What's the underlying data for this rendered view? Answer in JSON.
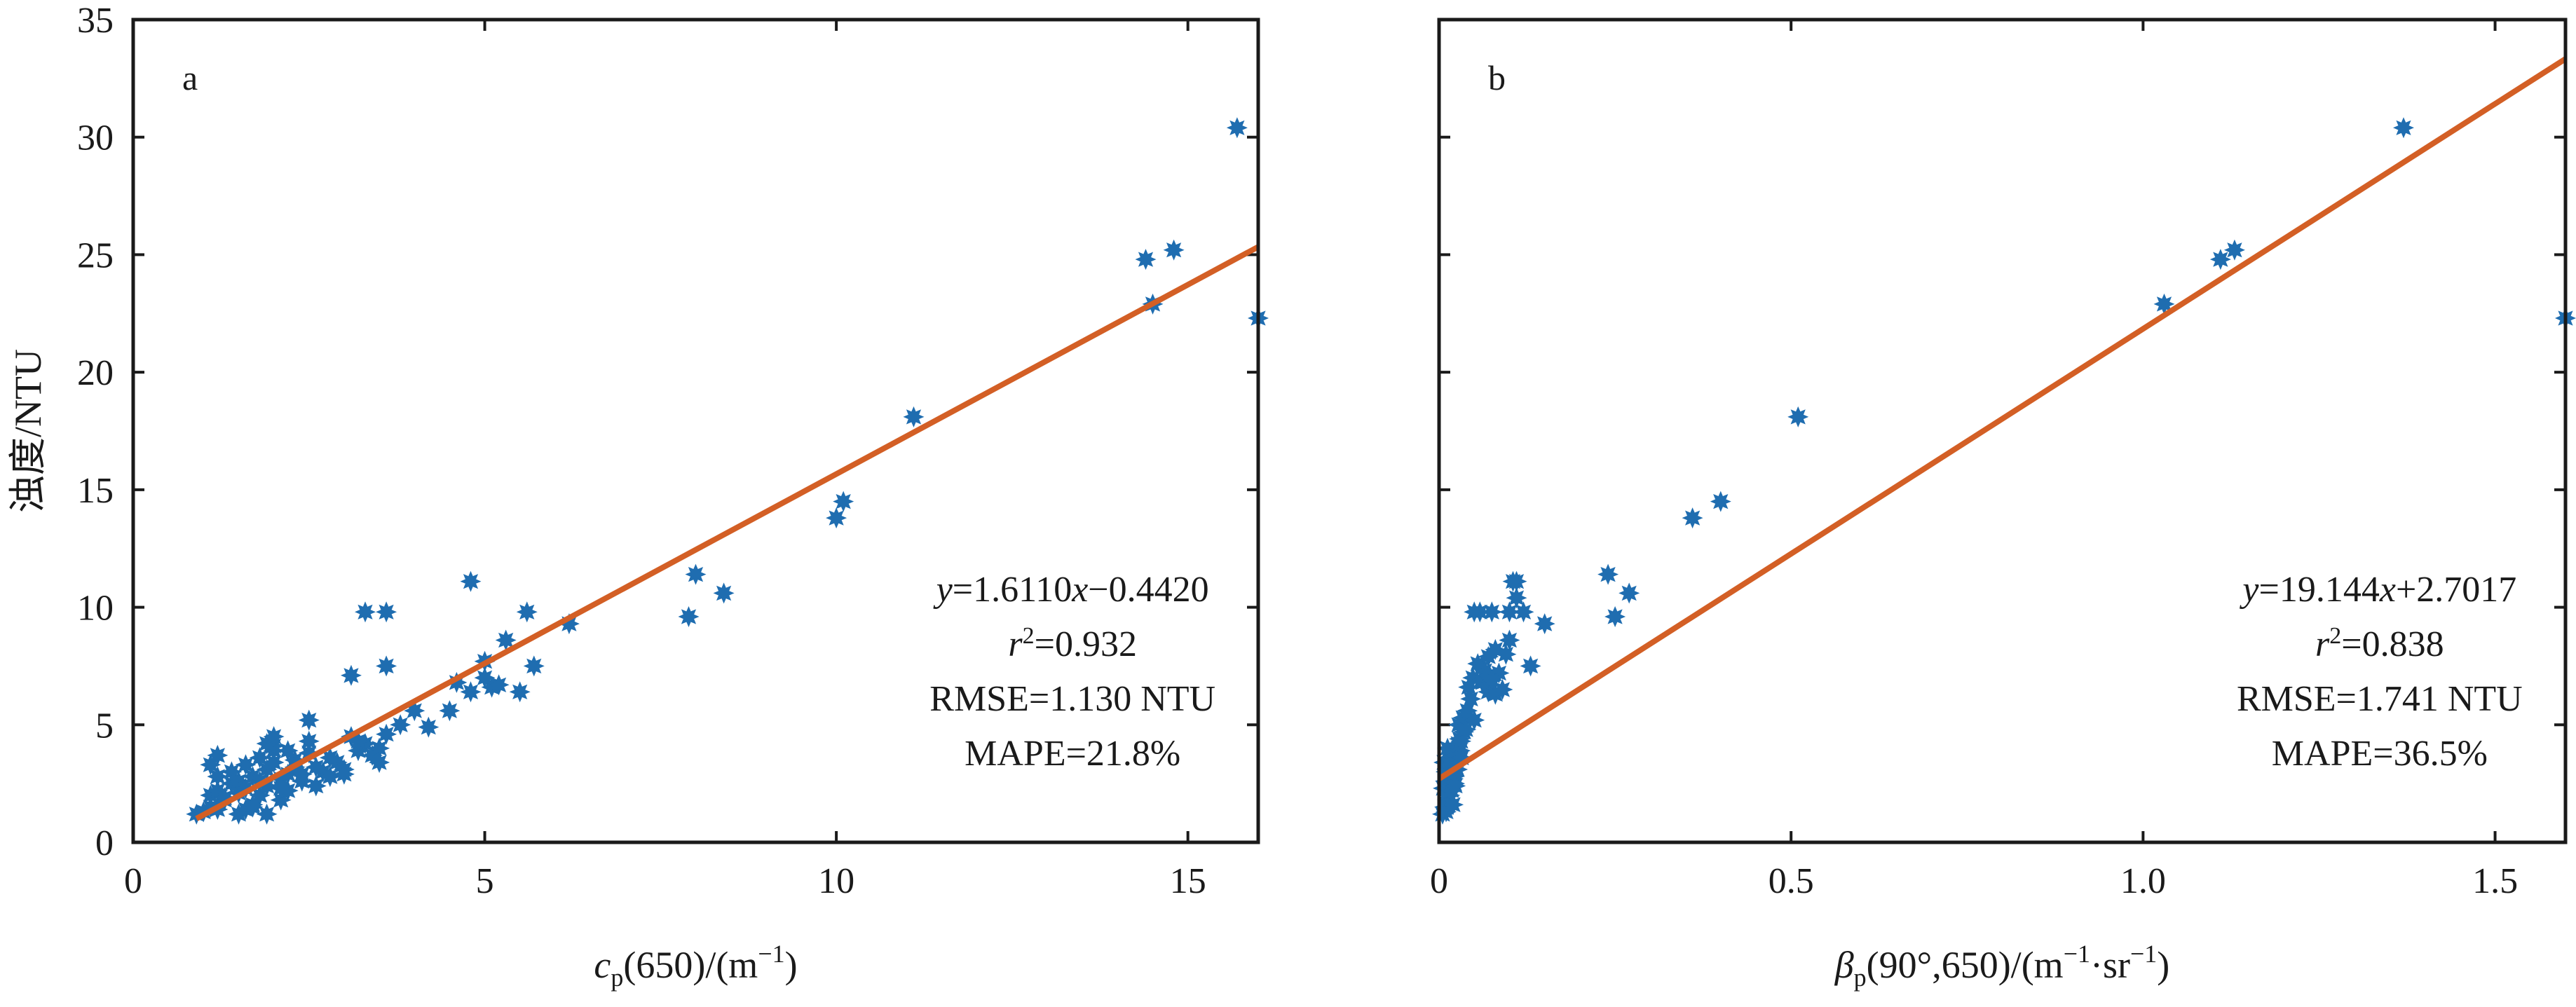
{
  "chart_data": [
    {
      "type": "scatter",
      "panel_label": "a",
      "xlabel": {
        "main": "c",
        "sub": "p",
        "rest": "(650)/(m",
        "sup": "−1",
        "close": ")"
      },
      "ylabel": "浊度/NTU",
      "xlim": [
        0,
        16
      ],
      "ylim": [
        0,
        35
      ],
      "xticks": [
        0,
        5,
        10,
        15
      ],
      "xtick_labels": [
        "0",
        "5",
        "10",
        "15"
      ],
      "yticks": [
        0,
        5,
        10,
        15,
        20,
        25,
        30,
        35
      ],
      "ytick_labels": [
        "0",
        "5",
        "10",
        "15",
        "20",
        "25",
        "30",
        "35"
      ],
      "fit": {
        "slope": 1.611,
        "intercept": -0.442,
        "x_range": [
          0.9,
          16
        ]
      },
      "stats": {
        "equation": {
          "y": "y",
          "eq": "=1.6110",
          "x": "x",
          "rest": "−0.4420"
        },
        "r2": {
          "r": "r",
          "sup": "2",
          "rest": "=0.932"
        },
        "rmse": "RMSE=1.130 NTU",
        "mape": "MAPE=21.8%"
      },
      "series": [
        {
          "x": [
            0.9,
            1.0,
            1.1,
            1.2,
            1.3,
            1.1,
            1.2,
            1.3,
            1.4,
            1.5,
            1.4,
            1.5,
            1.6,
            1.7,
            1.6,
            1.7,
            1.8,
            1.9,
            1.8,
            1.9,
            2.0,
            2.1,
            2.0,
            2.1,
            2.2,
            2.3,
            2.2,
            2.3,
            2.4,
            2.5,
            2.6,
            2.7,
            2.8,
            2.9,
            3.0,
            3.1,
            3.2,
            3.3,
            3.4,
            3.5,
            1.2,
            1.1,
            1.2,
            1.5,
            1.6,
            1.7,
            1.8,
            1.9,
            2.0,
            2.1,
            2.2,
            2.4,
            2.5,
            2.6,
            2.8,
            3.0,
            3.2,
            3.5,
            3.6,
            3.8,
            4.0,
            4.2,
            4.5,
            4.6,
            4.8,
            5.0,
            5.1,
            5.2,
            5.5,
            1.9,
            2.0,
            2.5,
            3.1,
            3.3,
            3.6,
            3.6,
            4.8,
            5.0,
            5.3,
            5.6,
            5.7,
            6.2,
            7.9,
            8.0,
            8.4,
            10.0,
            10.1,
            11.1,
            14.4,
            14.5,
            14.8,
            15.7,
            16.0
          ],
          "y": [
            1.2,
            1.3,
            1.5,
            1.4,
            1.8,
            2.0,
            2.2,
            1.9,
            2.5,
            2.1,
            3.0,
            2.6,
            2.3,
            2.8,
            3.3,
            1.5,
            2.0,
            1.2,
            3.6,
            2.4,
            3.9,
            2.7,
            4.1,
            1.8,
            2.9,
            3.2,
            2.2,
            3.5,
            2.6,
            3.8,
            2.4,
            3.0,
            2.8,
            3.4,
            3.1,
            4.5,
            3.9,
            4.2,
            3.7,
            4.0,
            2.8,
            3.3,
            3.7,
            1.2,
            1.4,
            1.6,
            2.6,
            3.1,
            3.4,
            2.3,
            3.9,
            2.9,
            4.3,
            3.2,
            3.6,
            2.9,
            4.3,
            3.4,
            4.6,
            5.0,
            5.6,
            4.9,
            5.6,
            6.8,
            6.4,
            7.7,
            6.6,
            6.7,
            6.4,
            4.2,
            4.5,
            5.2,
            7.1,
            9.8,
            9.8,
            7.5,
            11.1,
            7.0,
            8.6,
            9.8,
            7.5,
            9.3,
            9.6,
            11.4,
            10.6,
            13.8,
            14.5,
            18.1,
            24.8,
            22.9,
            25.2,
            30.4,
            22.3
          ]
        }
      ]
    },
    {
      "type": "scatter",
      "panel_label": "b",
      "xlabel": {
        "main": "β",
        "sub": "p",
        "rest": "(90°,650)/(m",
        "sup1": "−1",
        "mid": "·sr",
        "sup2": "−1",
        "close": ")"
      },
      "ylabel": "",
      "xlim": [
        0,
        1.6
      ],
      "ylim": [
        0,
        35
      ],
      "xticks": [
        0,
        0.5,
        1.0,
        1.5
      ],
      "xtick_labels": [
        "0",
        "0.5",
        "1.0",
        "1.5"
      ],
      "yticks": [
        0,
        5,
        10,
        15,
        20,
        25,
        30,
        35
      ],
      "fit": {
        "slope": 19.144,
        "intercept": 2.7017,
        "x_range": [
          0,
          1.6
        ]
      },
      "stats": {
        "equation": {
          "y": "y",
          "eq": "=19.144",
          "x": "x",
          "rest": "+2.7017"
        },
        "r2": {
          "r": "r",
          "sup": "2",
          "rest": "=0.838"
        },
        "rmse": "RMSE=1.741 NTU",
        "mape": "MAPE=36.5%"
      },
      "series": [
        {
          "x": [
            0.005,
            0.008,
            0.01,
            0.012,
            0.015,
            0.006,
            0.009,
            0.011,
            0.013,
            0.016,
            0.018,
            0.02,
            0.007,
            0.01,
            0.014,
            0.017,
            0.019,
            0.022,
            0.025,
            0.012,
            0.015,
            0.018,
            0.021,
            0.024,
            0.027,
            0.03,
            0.02,
            0.023,
            0.026,
            0.029,
            0.032,
            0.035,
            0.028,
            0.031,
            0.034,
            0.038,
            0.04,
            0.045,
            0.05,
            0.042,
            0.048,
            0.055,
            0.06,
            0.065,
            0.07,
            0.058,
            0.062,
            0.07,
            0.075,
            0.08,
            0.085,
            0.09,
            0.095,
            0.1,
            0.11,
            0.12,
            0.13,
            0.15,
            0.05,
            0.06,
            0.07,
            0.075,
            0.08,
            0.1,
            0.105,
            0.11,
            0.24,
            0.25,
            0.27,
            0.36,
            0.4,
            0.51,
            1.03,
            1.11,
            1.13,
            1.37,
            1.6
          ],
          "y": [
            1.2,
            1.5,
            1.3,
            1.8,
            2.0,
            2.3,
            2.6,
            2.1,
            2.9,
            2.4,
            3.1,
            2.7,
            3.4,
            3.0,
            3.6,
            3.2,
            3.8,
            2.5,
            3.5,
            4.0,
            3.3,
            2.2,
            2.8,
            3.7,
            4.2,
            3.9,
            1.6,
            2.4,
            3.1,
            4.4,
            3.6,
            4.7,
            5.0,
            4.3,
            5.3,
            4.8,
            5.6,
            6.1,
            5.2,
            6.6,
            7.0,
            7.6,
            6.9,
            7.3,
            6.4,
            9.8,
            6.8,
            7.9,
            9.8,
            6.3,
            7.2,
            6.5,
            8.0,
            8.6,
            11.1,
            9.8,
            7.5,
            9.3,
            9.8,
            7.4,
            7.1,
            6.9,
            8.2,
            9.8,
            11.1,
            10.4,
            11.4,
            9.6,
            10.6,
            13.8,
            14.5,
            18.1,
            22.9,
            24.8,
            25.2,
            30.4,
            22.3
          ]
        }
      ]
    }
  ]
}
